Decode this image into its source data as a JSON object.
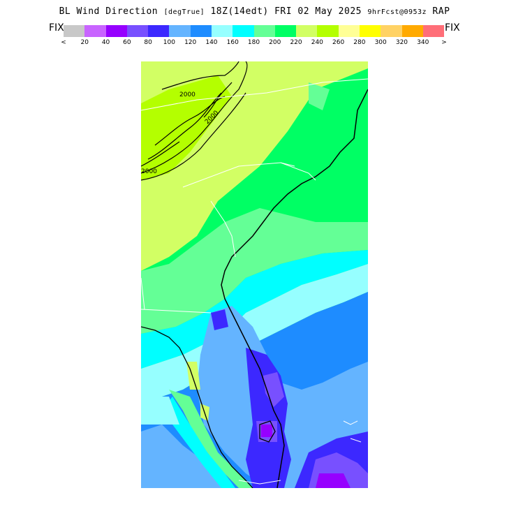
{
  "header": {
    "title_main": "BL Wind Direction",
    "title_units": "[degTrue]",
    "title_time": "18Z(14edt) FRI 02 May 2025",
    "title_fcst": "9hrFcst@0953z",
    "title_model": "RAP"
  },
  "legend": {
    "fix_left": "FIX",
    "fix_right": "FIX",
    "colors": [
      "#c8c8c8",
      "#c864ff",
      "#9600ff",
      "#7850ff",
      "#3c28ff",
      "#64b4ff",
      "#1e8cff",
      "#96ffff",
      "#00ffff",
      "#64ff96",
      "#00ff64",
      "#d2ff64",
      "#b4ff00",
      "#ffff96",
      "#ffff00",
      "#ffd264",
      "#ffaa00",
      "#ff6e78"
    ],
    "ticks": [
      "<",
      "20",
      "40",
      "60",
      "80",
      "100",
      "120",
      "140",
      "160",
      "180",
      "200",
      "220",
      "240",
      "260",
      "280",
      "300",
      "320",
      "340",
      ">"
    ]
  },
  "map": {
    "contour_labels": [
      "2000",
      "2000",
      "2000"
    ]
  }
}
